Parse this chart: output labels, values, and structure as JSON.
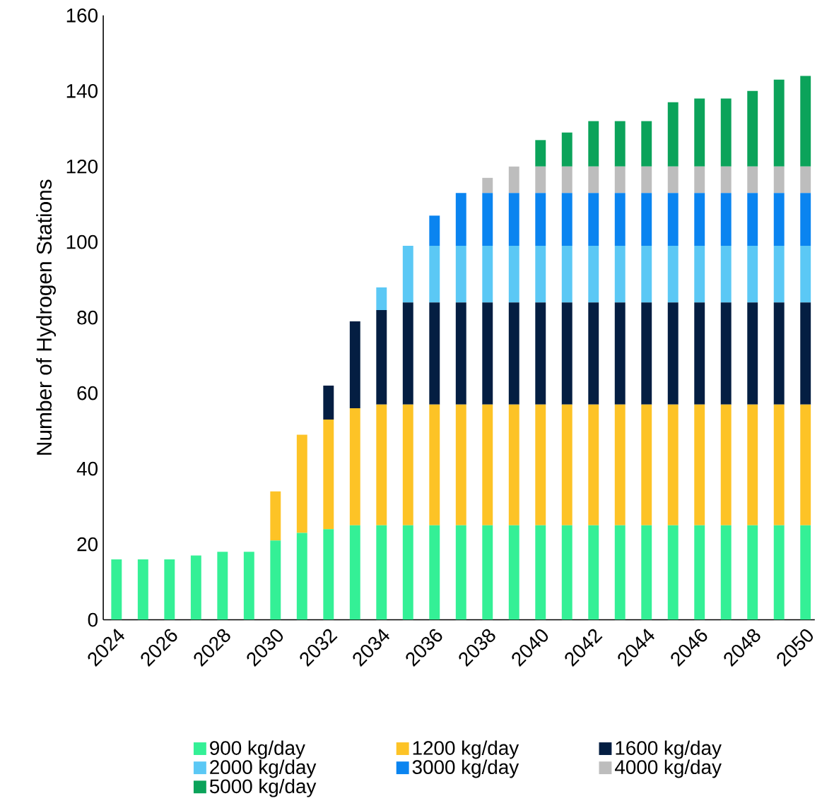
{
  "chart_data": {
    "type": "bar",
    "stacked": true,
    "ylabel": "Number of Hydrogen Stations",
    "categories": [
      "2024",
      null,
      "2026",
      null,
      "2028",
      null,
      "2030",
      null,
      "2032",
      null,
      "2034",
      null,
      "2036",
      null,
      "2038",
      null,
      "2040",
      null,
      "2042",
      null,
      "2044",
      null,
      "2046",
      null,
      "2048",
      null,
      "2050"
    ],
    "ylim": [
      0,
      160
    ],
    "yticks": [
      0,
      20,
      40,
      60,
      80,
      100,
      120,
      140,
      160
    ],
    "legend": "bottom",
    "series": [
      {
        "name": "900 kg/day",
        "color": "#34f096",
        "values": [
          16,
          16,
          16,
          17,
          18,
          18,
          21,
          23,
          24,
          25,
          25,
          25,
          25,
          25,
          25,
          25,
          25,
          25,
          25,
          25,
          25,
          25,
          25,
          25,
          25,
          25,
          25
        ]
      },
      {
        "name": "1200 kg/day",
        "color": "#fdc326",
        "values": [
          null,
          null,
          null,
          null,
          null,
          null,
          13,
          26,
          29,
          31,
          32,
          32,
          32,
          32,
          32,
          32,
          32,
          32,
          32,
          32,
          32,
          32,
          32,
          32,
          32,
          32,
          32
        ]
      },
      {
        "name": "1600 kg/day",
        "color": "#041e42",
        "values": [
          null,
          null,
          null,
          null,
          null,
          null,
          null,
          null,
          9,
          23,
          25,
          27,
          27,
          27,
          27,
          27,
          27,
          27,
          27,
          27,
          27,
          27,
          27,
          27,
          27,
          27,
          27
        ]
      },
      {
        "name": "2000 kg/day",
        "color": "#5bc8f5",
        "values": [
          null,
          null,
          null,
          null,
          null,
          null,
          null,
          null,
          null,
          null,
          6,
          15,
          15,
          15,
          15,
          15,
          15,
          15,
          15,
          15,
          15,
          15,
          15,
          15,
          15,
          15,
          15
        ]
      },
      {
        "name": "3000 kg/day",
        "color": "#0a84f0",
        "values": [
          null,
          null,
          null,
          null,
          null,
          null,
          null,
          null,
          null,
          null,
          null,
          null,
          8,
          14,
          14,
          14,
          14,
          14,
          14,
          14,
          14,
          14,
          14,
          14,
          14,
          14,
          14
        ]
      },
      {
        "name": "4000 kg/day",
        "color": "#bdbdbd",
        "values": [
          null,
          null,
          null,
          null,
          null,
          null,
          null,
          null,
          null,
          null,
          null,
          null,
          null,
          null,
          4,
          7,
          7,
          7,
          7,
          7,
          7,
          7,
          7,
          7,
          7,
          7,
          7
        ]
      },
      {
        "name": "5000 kg/day",
        "color": "#0ba35a",
        "values": [
          null,
          null,
          null,
          null,
          null,
          null,
          null,
          null,
          null,
          null,
          null,
          null,
          null,
          null,
          null,
          null,
          7,
          9,
          12,
          12,
          12,
          17,
          18,
          18,
          20,
          23,
          24
        ]
      }
    ]
  }
}
